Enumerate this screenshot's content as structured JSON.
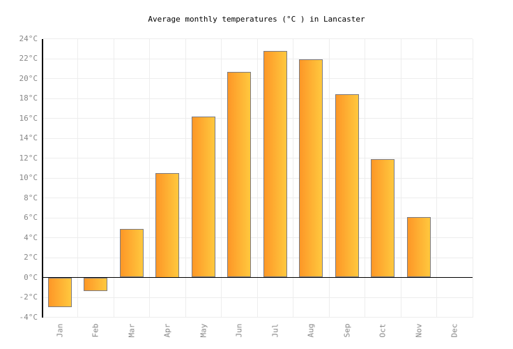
{
  "title": "Average monthly temperatures (°C ) in Lancaster",
  "colors": {
    "title": "#000000",
    "tick_label": "#878787",
    "grid": "#ededed",
    "axis": "#000000",
    "bar_gradient_left": "#fd9727",
    "bar_gradient_right": "#ffc83e",
    "bar_border": "#7b7b84"
  },
  "y_axis": {
    "unit": "°C",
    "min": -4,
    "max": 24,
    "step": 2,
    "tick_labels": [
      "24°C",
      "22°C",
      "20°C",
      "18°C",
      "16°C",
      "14°C",
      "12°C",
      "10°C",
      "8°C",
      "6°C",
      "4°C",
      "2°C",
      "0°C",
      "-2°C",
      "-4°C"
    ]
  },
  "chart_data": {
    "type": "bar",
    "title": "Average monthly temperatures (°C ) in Lancaster",
    "categories": [
      "Jan",
      "Feb",
      "Mar",
      "Apr",
      "May",
      "Jun",
      "Jul",
      "Aug",
      "Sep",
      "Oct",
      "Nov",
      "Dec"
    ],
    "values": [
      -3.0,
      -1.4,
      4.9,
      10.5,
      16.2,
      20.7,
      22.8,
      21.9,
      18.4,
      11.9,
      6.1,
      0.0
    ],
    "unit": "°C",
    "xlabel": "",
    "ylabel": "",
    "ylim": [
      -4,
      24
    ],
    "ytick_step": 2,
    "grid": true,
    "legend": "none",
    "zero_line_at": 0,
    "bar_label_rotation_deg": -90
  }
}
